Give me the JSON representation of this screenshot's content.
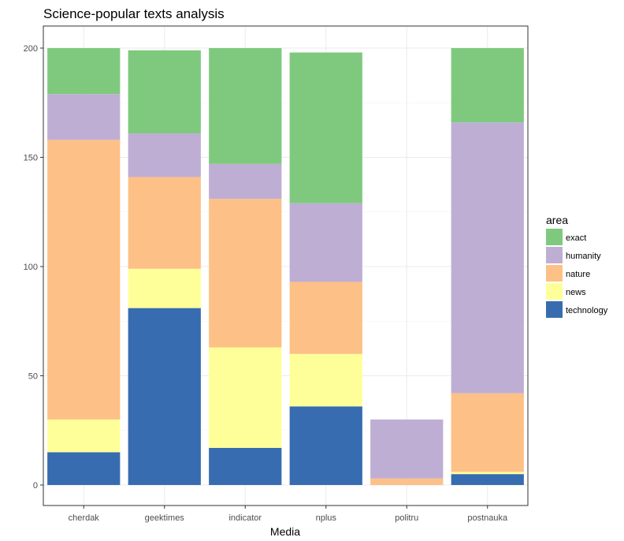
{
  "chart_data": {
    "type": "bar",
    "stacked": true,
    "title": "Science-popular texts analysis",
    "xlabel": "Media",
    "ylabel": "",
    "ylim": [
      0,
      205
    ],
    "yticks": [
      0,
      50,
      100,
      150,
      200
    ],
    "categories": [
      "cherdak",
      "geektimes",
      "indicator",
      "nplus",
      "politru",
      "postnauka"
    ],
    "legend": {
      "title": "area",
      "position": "right"
    },
    "grid": true,
    "series": [
      {
        "name": "technology",
        "color": "#386CB0",
        "values": [
          15,
          81,
          17,
          36,
          0,
          5
        ]
      },
      {
        "name": "news",
        "color": "#FFFF99",
        "values": [
          15,
          18,
          46,
          24,
          0,
          1
        ]
      },
      {
        "name": "nature",
        "color": "#FDC086",
        "values": [
          128,
          42,
          68,
          33,
          3,
          36
        ]
      },
      {
        "name": "humanity",
        "color": "#BEAED4",
        "values": [
          21,
          20,
          16,
          36,
          27,
          124
        ]
      },
      {
        "name": "exact",
        "color": "#7FC97F",
        "values": [
          21,
          38,
          53,
          69,
          0,
          34
        ]
      }
    ]
  }
}
